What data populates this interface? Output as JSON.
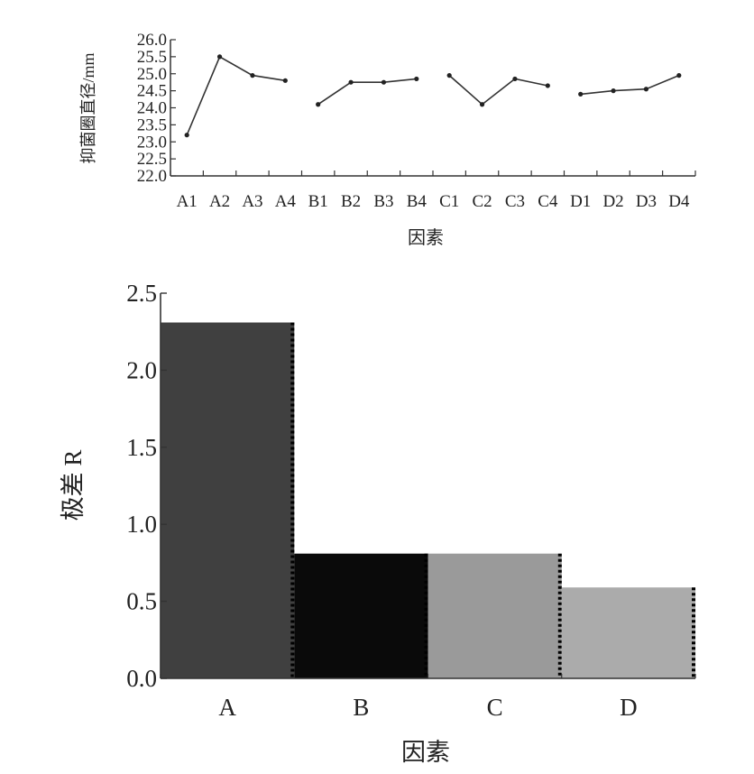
{
  "chart_data": [
    {
      "type": "line",
      "ylabel": "抑菌圈直径/mm",
      "xlabel": "因素",
      "ylim": [
        22.0,
        26.0
      ],
      "yticks": [
        "22.0",
        "22.5",
        "23.0",
        "23.5",
        "24.0",
        "24.5",
        "25.0",
        "25.5",
        "26.0"
      ],
      "categories": [
        "A1",
        "A2",
        "A3",
        "A4",
        "B1",
        "B2",
        "B3",
        "B4",
        "C1",
        "C2",
        "C3",
        "C4",
        "D1",
        "D2",
        "D3",
        "D4"
      ],
      "series": [
        {
          "group": "A",
          "x": [
            "A1",
            "A2",
            "A3",
            "A4"
          ],
          "values": [
            23.2,
            25.5,
            24.95,
            24.8
          ]
        },
        {
          "group": "B",
          "x": [
            "B1",
            "B2",
            "B3",
            "B4"
          ],
          "values": [
            24.1,
            24.75,
            24.75,
            24.85
          ]
        },
        {
          "group": "C",
          "x": [
            "C1",
            "C2",
            "C3",
            "C4"
          ],
          "values": [
            24.95,
            24.1,
            24.85,
            24.65
          ]
        },
        {
          "group": "D",
          "x": [
            "D1",
            "D2",
            "D3",
            "D4"
          ],
          "values": [
            24.4,
            24.5,
            24.55,
            24.95
          ]
        }
      ],
      "grid": false,
      "colors": {
        "line": "#333333",
        "marker": "#222222"
      }
    },
    {
      "type": "bar",
      "ylabel": "极差 R",
      "xlabel": "因素",
      "ylim": [
        0.0,
        2.5
      ],
      "yticks": [
        "0.0",
        "0.5",
        "1.0",
        "1.5",
        "2.0",
        "2.5"
      ],
      "categories": [
        "A",
        "B",
        "C",
        "D"
      ],
      "values": [
        2.31,
        0.81,
        0.81,
        0.59
      ],
      "grid": false,
      "colors": [
        "#404040",
        "#0a0a0a",
        "#9a9a9a",
        "#ababab"
      ]
    }
  ]
}
